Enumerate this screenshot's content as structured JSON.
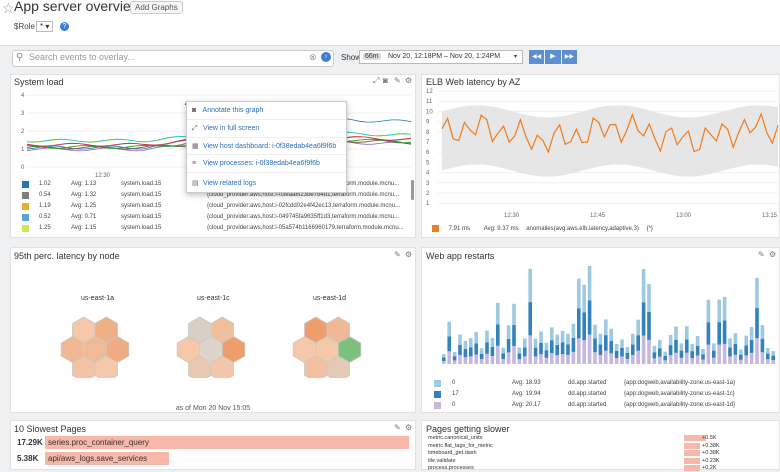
{
  "header": {
    "title": "App server overview",
    "add_graphs": "Add Graphs",
    "role_label": "$Role",
    "role_value": "* ▾",
    "help": "?"
  },
  "search": {
    "placeholder": "Search events to overlay...",
    "show_label": "Show",
    "range_badge": "66m",
    "range": "Nov 20, 12:18PM – Nov 20, 1:24PM",
    "prev": "◀◀",
    "play": "▶",
    "next": "▶▶"
  },
  "system_load": {
    "title": "System load",
    "y_ticks": [
      "4",
      "3",
      "2",
      "1",
      "0"
    ],
    "x_ticks": [
      "12:30"
    ],
    "legend": [
      {
        "color": "#1f77b4",
        "val": "1.02",
        "avg": "Avg: 1.13",
        "metric": "system.load.15",
        "scope": "{cloud_provider:aws,host:i-03eaa8f23be7b4d1,terraform.module.mcnu..."
      },
      {
        "color": "#7f7f7f",
        "val": "0.54",
        "avg": "Avg: 1.32",
        "metric": "system.load.15",
        "scope": "{cloud_provider:aws,host:i-03eaa8f23be7b4d1,terraform.module.mcnu..."
      },
      {
        "color": "#e6b030",
        "val": "1.19",
        "avg": "Avg: 1.25",
        "metric": "system.load.15",
        "scope": "{cloud_provider:aws,host:i-02fcdd02e4f42ec13,terraform.module.mcnu..."
      },
      {
        "color": "#5aa5d6",
        "val": "0.52",
        "avg": "Avg: 0.71",
        "metric": "system.load.15",
        "scope": "{cloud_provider:aws,host:i-049745fa9635ff1d3,terraform.module.mcnu..."
      },
      {
        "color": "#cde84e",
        "val": "1.25",
        "avg": "Avg: 1.15",
        "metric": "system.load.15",
        "scope": "{cloud_provider:aws,host:i-05a574b1166960179,terraform.module.mcnu..."
      }
    ],
    "menu": [
      {
        "icon": "camera-icon",
        "glyph": "◙",
        "label": "Annotate this graph"
      },
      {
        "icon": "expand-icon",
        "glyph": "⤢",
        "label": "View in full screen"
      },
      {
        "icon": "dashboard-icon",
        "glyph": "▦",
        "label": "View host dashboard: i-0f38edab4ea6f9f6b"
      },
      {
        "icon": "process-icon",
        "glyph": "≡",
        "label": "View processes: i-0f38edab4ea6f9f6b"
      },
      {
        "icon": "logs-icon",
        "glyph": "▤",
        "label": "View related logs"
      }
    ]
  },
  "elb": {
    "title": "ELB Web latency by AZ",
    "y_ticks": [
      "12",
      "11",
      "10",
      "9",
      "8",
      "7",
      "6",
      "5",
      "4",
      "3",
      "2",
      "1"
    ],
    "x_ticks": [
      "12:30",
      "12:45",
      "13:00",
      "13:15"
    ],
    "legend": {
      "color": "#f07b1c",
      "val": "7.91 ms",
      "avg": "Avg: 9.37 ms",
      "metric": "anomalies(avg:aws.elb.latency,adaptive,3)",
      "tag": "{*}"
    }
  },
  "p95": {
    "title": "95th perc. latency by node",
    "groups": [
      {
        "label": "us-east-1a",
        "cells": [
          "#f4c8a8",
          "#efb085",
          "#f0b894",
          "#f0ba96",
          "#eeac80",
          "#f2c4a4",
          "#f4c9ab"
        ]
      },
      {
        "label": "us-east-1c",
        "cells": [
          "#d8d0c4",
          "#f0c09c",
          "#f4c8a8",
          "#ddd5ca",
          "#ee9e6c",
          "#e8c8b0",
          "#f2c6a8"
        ]
      },
      {
        "label": "us-east-1d",
        "cells": [
          "#ee9e6a",
          "#f0b894",
          "#f4c8a8",
          "#f4c8a8",
          "#7dbf7d",
          "#f2c0a0",
          "#e4c9b6"
        ]
      }
    ],
    "footer": "as of Mon 20 Nov 15:05"
  },
  "restarts": {
    "title": "Web app restarts",
    "legend": [
      {
        "color": "#9ecae1",
        "val": "0",
        "avg": "Avg: 18.93",
        "metric": "dd.app.started",
        "scope": "{app:dogweb,availability-zone:us-east-1a}"
      },
      {
        "color": "#3182bd",
        "val": "17",
        "avg": "Avg: 19.94",
        "metric": "dd.app.started",
        "scope": "{app:dogweb,availability-zone:us-east-1c}"
      },
      {
        "color": "#c6b8dd",
        "val": "0",
        "avg": "Avg: 20.17",
        "metric": "dd.app.started",
        "scope": "{app:dogweb,availability-zone:us-east-1d}"
      }
    ]
  },
  "slowest": {
    "title": "10 Slowest Pages",
    "rows": [
      {
        "value": "17.29K",
        "label": "series.proc_container_query",
        "frac": 1.0
      },
      {
        "value": "5.38K",
        "label": "api/aws_logs.save_services",
        "frac": 0.34
      }
    ]
  },
  "slower": {
    "title": "Pages getting slower",
    "rows": [
      {
        "label": "metric.canonical_units",
        "value": "+0.5K"
      },
      {
        "label": "metric.flat_tags_for_metric",
        "value": "+0.38K"
      },
      {
        "label": "timeboard_get.dash",
        "value": "+0.38K"
      },
      {
        "label": "tile.validate",
        "value": "+0.23K"
      },
      {
        "label": "process.processes",
        "value": "+0.2K"
      }
    ]
  }
}
